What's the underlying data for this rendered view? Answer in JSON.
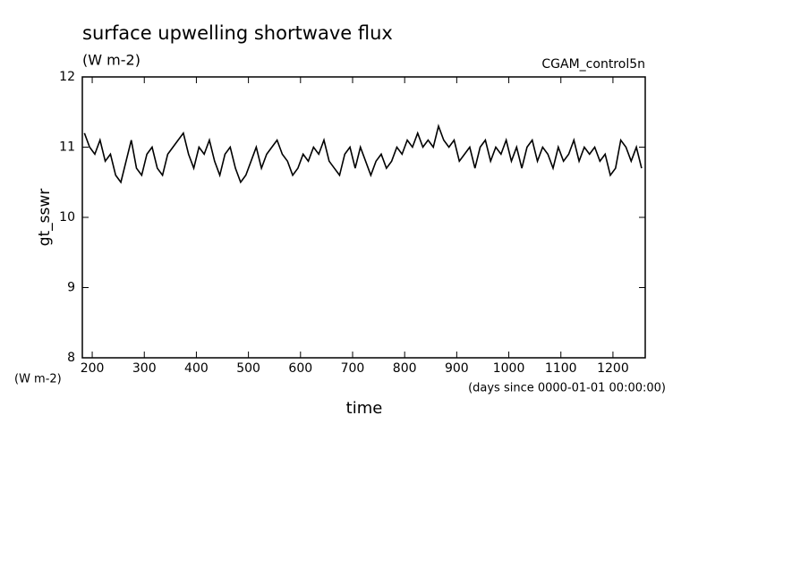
{
  "chart_data": {
    "type": "line",
    "title": "surface upwelling shortwave flux",
    "subtitle": "(W m-2)",
    "run_label": "CGAM_control5n",
    "ylabel": "gt_sswr",
    "y_units": "(W m-2)",
    "xlabel": "time",
    "x_units": "(days since 0000-01-01 00:00:00)",
    "xlim": [
      181,
      1262
    ],
    "ylim": [
      8,
      12
    ],
    "xticks": [
      200,
      300,
      400,
      500,
      600,
      700,
      800,
      900,
      1000,
      1100,
      1200
    ],
    "yticks": [
      8,
      9,
      10,
      11,
      12
    ],
    "grid": false,
    "color": "#000000",
    "x": [
      185,
      195,
      205,
      215,
      225,
      235,
      245,
      255,
      265,
      275,
      285,
      295,
      305,
      315,
      325,
      335,
      345,
      355,
      365,
      375,
      385,
      395,
      405,
      415,
      425,
      435,
      445,
      455,
      465,
      475,
      485,
      495,
      505,
      515,
      525,
      535,
      545,
      555,
      565,
      575,
      585,
      595,
      605,
      615,
      625,
      635,
      645,
      655,
      665,
      675,
      685,
      695,
      705,
      715,
      725,
      735,
      745,
      755,
      765,
      775,
      785,
      795,
      805,
      815,
      825,
      835,
      845,
      855,
      865,
      875,
      885,
      895,
      905,
      915,
      925,
      935,
      945,
      955,
      965,
      975,
      985,
      995,
      1005,
      1015,
      1025,
      1035,
      1045,
      1055,
      1065,
      1075,
      1085,
      1095,
      1105,
      1115,
      1125,
      1135,
      1145,
      1155,
      1165,
      1175,
      1185,
      1195,
      1205,
      1215,
      1225,
      1235,
      1245,
      1255
    ],
    "values": [
      11.2,
      11.0,
      10.9,
      11.1,
      10.8,
      10.9,
      10.6,
      10.5,
      10.8,
      11.1,
      10.7,
      10.6,
      10.9,
      11.0,
      10.7,
      10.6,
      10.9,
      11.0,
      11.1,
      11.2,
      10.9,
      10.7,
      11.0,
      10.9,
      11.1,
      10.8,
      10.6,
      10.9,
      11.0,
      10.7,
      10.5,
      10.6,
      10.8,
      11.0,
      10.7,
      10.9,
      11.0,
      11.1,
      10.9,
      10.8,
      10.6,
      10.7,
      10.9,
      10.8,
      11.0,
      10.9,
      11.1,
      10.8,
      10.7,
      10.6,
      10.9,
      11.0,
      10.7,
      11.0,
      10.8,
      10.6,
      10.8,
      10.9,
      10.7,
      10.8,
      11.0,
      10.9,
      11.1,
      11.0,
      11.2,
      11.0,
      11.1,
      11.0,
      11.3,
      11.1,
      11.0,
      11.1,
      10.8,
      10.9,
      11.0,
      10.7,
      11.0,
      11.1,
      10.8,
      11.0,
      10.9,
      11.1,
      10.8,
      11.0,
      10.7,
      11.0,
      11.1,
      10.8,
      11.0,
      10.9,
      10.7,
      11.0,
      10.8,
      10.9,
      11.1,
      10.8,
      11.0,
      10.9,
      11.0,
      10.8,
      10.9,
      10.6,
      10.7,
      11.1,
      11.0,
      10.8,
      11.0,
      10.7
    ]
  }
}
